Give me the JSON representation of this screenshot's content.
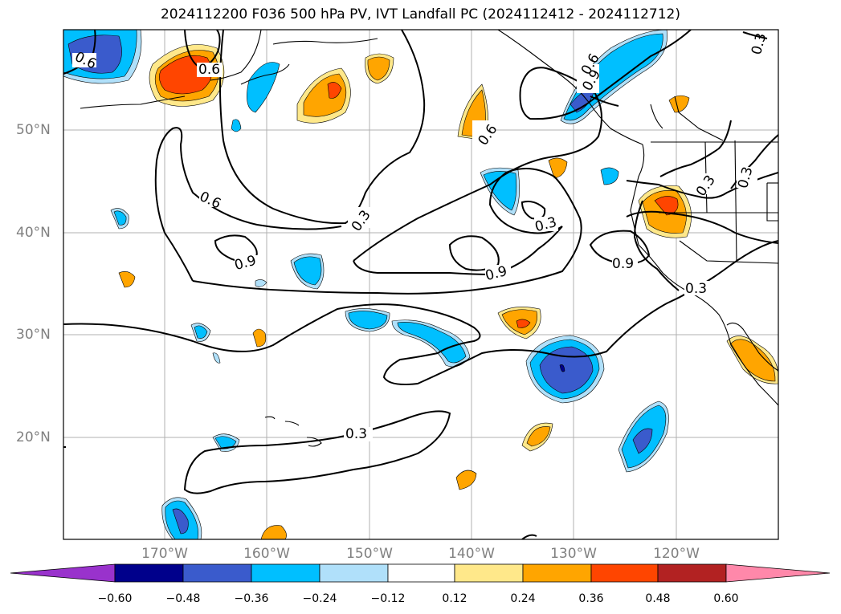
{
  "title": "2024112200 F036 500 hPa PV, IVT Landfall PC (2024112412 - 2024112712)",
  "lat_labels": [
    "50°N",
    "40°N",
    "30°N",
    "20°N"
  ],
  "lon_labels": [
    "170°W",
    "160°W",
    "150°W",
    "140°W",
    "130°W",
    "120°W"
  ],
  "contour_labels": [
    "0.6",
    "0.6",
    "0.6",
    "0.6",
    "0.3",
    "0.3",
    "0.3",
    "0.3",
    "0.9",
    "0.9",
    "0.9",
    "0.9",
    "0.3",
    "0.3",
    "0.6",
    "0.3"
  ],
  "colorbar": {
    "ticks": [
      "−0.60",
      "−0.48",
      "−0.36",
      "−0.24",
      "−0.12",
      "0.12",
      "0.24",
      "0.36",
      "0.48",
      "0.60"
    ],
    "colors": [
      "#9932cc",
      "#00008b",
      "#3a5bcc",
      "#00bfff",
      "#b0e0fa",
      "#ffffff",
      "#ffe88a",
      "#ffa500",
      "#ff4500",
      "#b22222",
      "#ff88aa"
    ]
  },
  "colors": {
    "pos1": "#ffe88a",
    "pos2": "#ffa500",
    "pos3": "#ff4500",
    "neg1": "#b0e0fa",
    "neg2": "#00bfff",
    "neg3": "#3a5bcc",
    "neg4": "#00008b"
  }
}
